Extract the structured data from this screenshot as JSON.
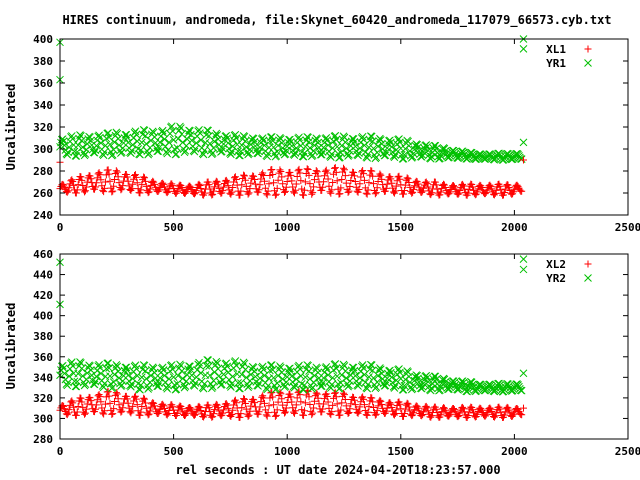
{
  "title": "HIRES continuum, andromeda, file:Skynet_60420_andromeda_117079_66573.cyb.txt",
  "xlabel": "rel seconds : UT date 2024-04-20T18:23:57.000",
  "colors": {
    "red": "#ff0000",
    "green": "#00c000"
  },
  "chart_data": [
    {
      "type": "scatter",
      "ylabel": "Uncalibrated",
      "xlim": [
        0,
        2500
      ],
      "ylim": [
        240,
        400
      ],
      "xticks": [
        0,
        500,
        1000,
        1500,
        2000,
        2500
      ],
      "yticks": [
        240,
        260,
        280,
        300,
        320,
        340,
        360,
        380,
        400
      ],
      "legend_position": "top-right",
      "series": [
        {
          "name": "XL1",
          "marker": "+",
          "color": "#ff0000",
          "x": [
            0,
            50,
            100,
            150,
            200,
            250,
            300,
            350,
            400,
            450,
            500,
            550,
            600,
            650,
            700,
            750,
            800,
            850,
            900,
            950,
            1000,
            1050,
            1100,
            1150,
            1200,
            1250,
            1300,
            1350,
            1400,
            1450,
            1500,
            1550,
            1600,
            1650,
            1700,
            1750,
            1800,
            1850,
            1900,
            1950,
            2000,
            2035
          ],
          "y": [
            264,
            266,
            268,
            270,
            271,
            271,
            270,
            268,
            266,
            265,
            264,
            263,
            263,
            264,
            265,
            266,
            267,
            268,
            269,
            270,
            270,
            270,
            270,
            271,
            271,
            271,
            270,
            270,
            269,
            268,
            267,
            266,
            265,
            264,
            263,
            263,
            263,
            263,
            263,
            263,
            263,
            265
          ],
          "spread": [
            4,
            6,
            8,
            9,
            10,
            10,
            9,
            8,
            6,
            5,
            4,
            4,
            5,
            6,
            7,
            8,
            9,
            10,
            11,
            12,
            12,
            12,
            12,
            12,
            12,
            12,
            12,
            11,
            10,
            9,
            8,
            7,
            6,
            6,
            5,
            5,
            5,
            5,
            5,
            5,
            5,
            4
          ]
        },
        {
          "name": "YR1",
          "marker": "x",
          "color": "#00c000",
          "x": [
            0,
            50,
            100,
            150,
            200,
            250,
            300,
            350,
            400,
            450,
            500,
            550,
            600,
            650,
            700,
            750,
            800,
            850,
            900,
            950,
            1000,
            1050,
            1100,
            1150,
            1200,
            1250,
            1300,
            1350,
            1400,
            1450,
            1500,
            1550,
            1600,
            1650,
            1700,
            1750,
            1800,
            1850,
            1900,
            1950,
            2000,
            2035
          ],
          "y": [
            302,
            303,
            303,
            304,
            304,
            305,
            305,
            306,
            306,
            307,
            308,
            308,
            307,
            306,
            305,
            304,
            303,
            303,
            302,
            302,
            302,
            302,
            302,
            302,
            302,
            302,
            302,
            302,
            301,
            301,
            300,
            299,
            298,
            297,
            296,
            295,
            294,
            293,
            293,
            293,
            293,
            294
          ],
          "spread": [
            9,
            9,
            10,
            10,
            10,
            11,
            11,
            11,
            12,
            12,
            13,
            13,
            12,
            11,
            10,
            10,
            9,
            9,
            9,
            9,
            9,
            9,
            9,
            10,
            10,
            10,
            10,
            10,
            10,
            9,
            9,
            8,
            7,
            6,
            5,
            4,
            3,
            3,
            3,
            3,
            3,
            4
          ]
        }
      ],
      "outliers": [
        {
          "series": "YR1",
          "x": 0,
          "y": 397
        },
        {
          "series": "YR1",
          "x": 0,
          "y": 363
        },
        {
          "series": "YR1",
          "x": 2040,
          "y": 400
        },
        {
          "series": "YR1",
          "x": 2040,
          "y": 391
        },
        {
          "series": "YR1",
          "x": 2040,
          "y": 306
        },
        {
          "series": "XL1",
          "x": 0,
          "y": 288
        },
        {
          "series": "XL1",
          "x": 2040,
          "y": 290
        }
      ]
    },
    {
      "type": "scatter",
      "ylabel": "Uncalibrated",
      "xlim": [
        0,
        2500
      ],
      "ylim": [
        280,
        460
      ],
      "xticks": [
        0,
        500,
        1000,
        1500,
        2000,
        2500
      ],
      "yticks": [
        280,
        300,
        320,
        340,
        360,
        380,
        400,
        420,
        440,
        460
      ],
      "legend_position": "top-right",
      "series": [
        {
          "name": "XL2",
          "marker": "+",
          "color": "#ff0000",
          "x": [
            0,
            50,
            100,
            150,
            200,
            250,
            300,
            350,
            400,
            450,
            500,
            550,
            600,
            650,
            700,
            750,
            800,
            850,
            900,
            950,
            1000,
            1050,
            1100,
            1150,
            1200,
            1250,
            1300,
            1350,
            1400,
            1450,
            1500,
            1550,
            1600,
            1650,
            1700,
            1750,
            1800,
            1850,
            1900,
            1950,
            2000,
            2035
          ],
          "y": [
            308,
            310,
            312,
            314,
            315,
            315,
            314,
            312,
            310,
            309,
            308,
            307,
            307,
            307,
            308,
            309,
            310,
            311,
            313,
            314,
            315,
            315,
            315,
            315,
            314,
            314,
            313,
            312,
            311,
            310,
            309,
            308,
            307,
            306,
            306,
            306,
            306,
            306,
            306,
            306,
            306,
            307
          ],
          "spread": [
            5,
            7,
            9,
            10,
            11,
            11,
            10,
            9,
            7,
            6,
            5,
            5,
            5,
            6,
            7,
            8,
            9,
            10,
            11,
            12,
            12,
            12,
            12,
            12,
            11,
            11,
            10,
            9,
            8,
            7,
            7,
            6,
            6,
            5,
            5,
            5,
            5,
            5,
            5,
            5,
            5,
            4
          ]
        },
        {
          "name": "YR2",
          "marker": "x",
          "color": "#00c000",
          "x": [
            0,
            50,
            100,
            150,
            200,
            250,
            300,
            350,
            400,
            450,
            500,
            550,
            600,
            650,
            700,
            750,
            800,
            850,
            900,
            950,
            1000,
            1050,
            1100,
            1150,
            1200,
            1250,
            1300,
            1350,
            1400,
            1450,
            1500,
            1550,
            1600,
            1650,
            1700,
            1750,
            1800,
            1850,
            1900,
            1950,
            2000,
            2035
          ],
          "y": [
            342,
            343,
            343,
            342,
            342,
            341,
            341,
            340,
            340,
            340,
            340,
            341,
            342,
            343,
            343,
            343,
            342,
            341,
            340,
            340,
            340,
            340,
            340,
            340,
            341,
            341,
            341,
            341,
            340,
            339,
            338,
            336,
            335,
            334,
            333,
            332,
            331,
            330,
            330,
            330,
            330,
            331
          ],
          "spread": [
            12,
            12,
            12,
            12,
            12,
            12,
            12,
            12,
            12,
            12,
            12,
            13,
            13,
            14,
            14,
            14,
            13,
            12,
            12,
            12,
            12,
            12,
            12,
            12,
            12,
            12,
            12,
            12,
            11,
            10,
            10,
            9,
            8,
            7,
            6,
            5,
            5,
            4,
            4,
            4,
            4,
            5
          ]
        }
      ],
      "outliers": [
        {
          "series": "YR2",
          "x": 0,
          "y": 452
        },
        {
          "series": "YR2",
          "x": 0,
          "y": 411
        },
        {
          "series": "YR2",
          "x": 2040,
          "y": 455
        },
        {
          "series": "YR2",
          "x": 2040,
          "y": 445
        },
        {
          "series": "YR2",
          "x": 2040,
          "y": 344
        },
        {
          "series": "XL2",
          "x": 2040,
          "y": 310
        }
      ]
    }
  ]
}
